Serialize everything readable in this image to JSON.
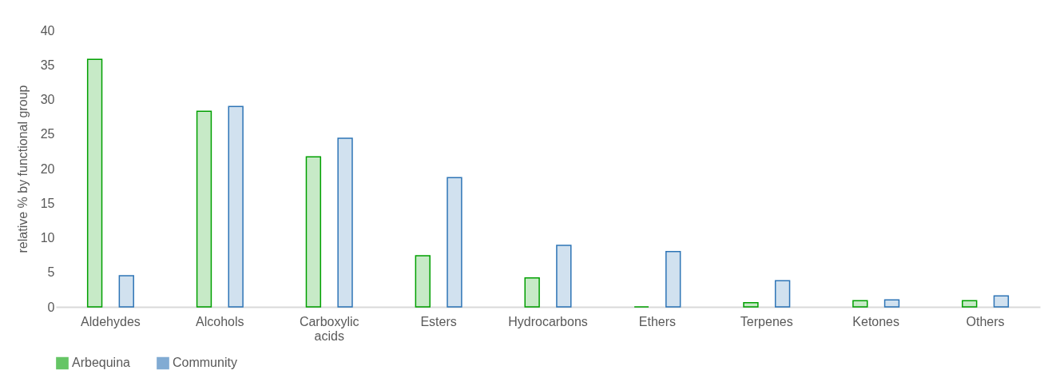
{
  "chart_data": {
    "type": "bar",
    "ylabel": "relative % by functional group",
    "categories": [
      "Aldehydes",
      "Alcohols",
      "Carboxylic acids",
      "Esters",
      "Hydrocarbons",
      "Ethers",
      "Terpenes",
      "Ketones",
      "Others"
    ],
    "series": [
      {
        "name": "Arbequina",
        "color": "#00a000",
        "values": [
          35.8,
          28.3,
          21.7,
          7.4,
          4.2,
          0,
          0.6,
          0.9,
          0.9
        ]
      },
      {
        "name": "Community",
        "color": "#2e75b6",
        "values": [
          4.5,
          29.0,
          24.4,
          18.7,
          8.9,
          8.0,
          3.8,
          1.0,
          1.6
        ]
      }
    ],
    "ylim": [
      0,
      40
    ],
    "yticks": [
      0,
      5,
      10,
      15,
      20,
      25,
      30,
      35,
      40
    ],
    "grid": false,
    "legend": "bottom"
  }
}
